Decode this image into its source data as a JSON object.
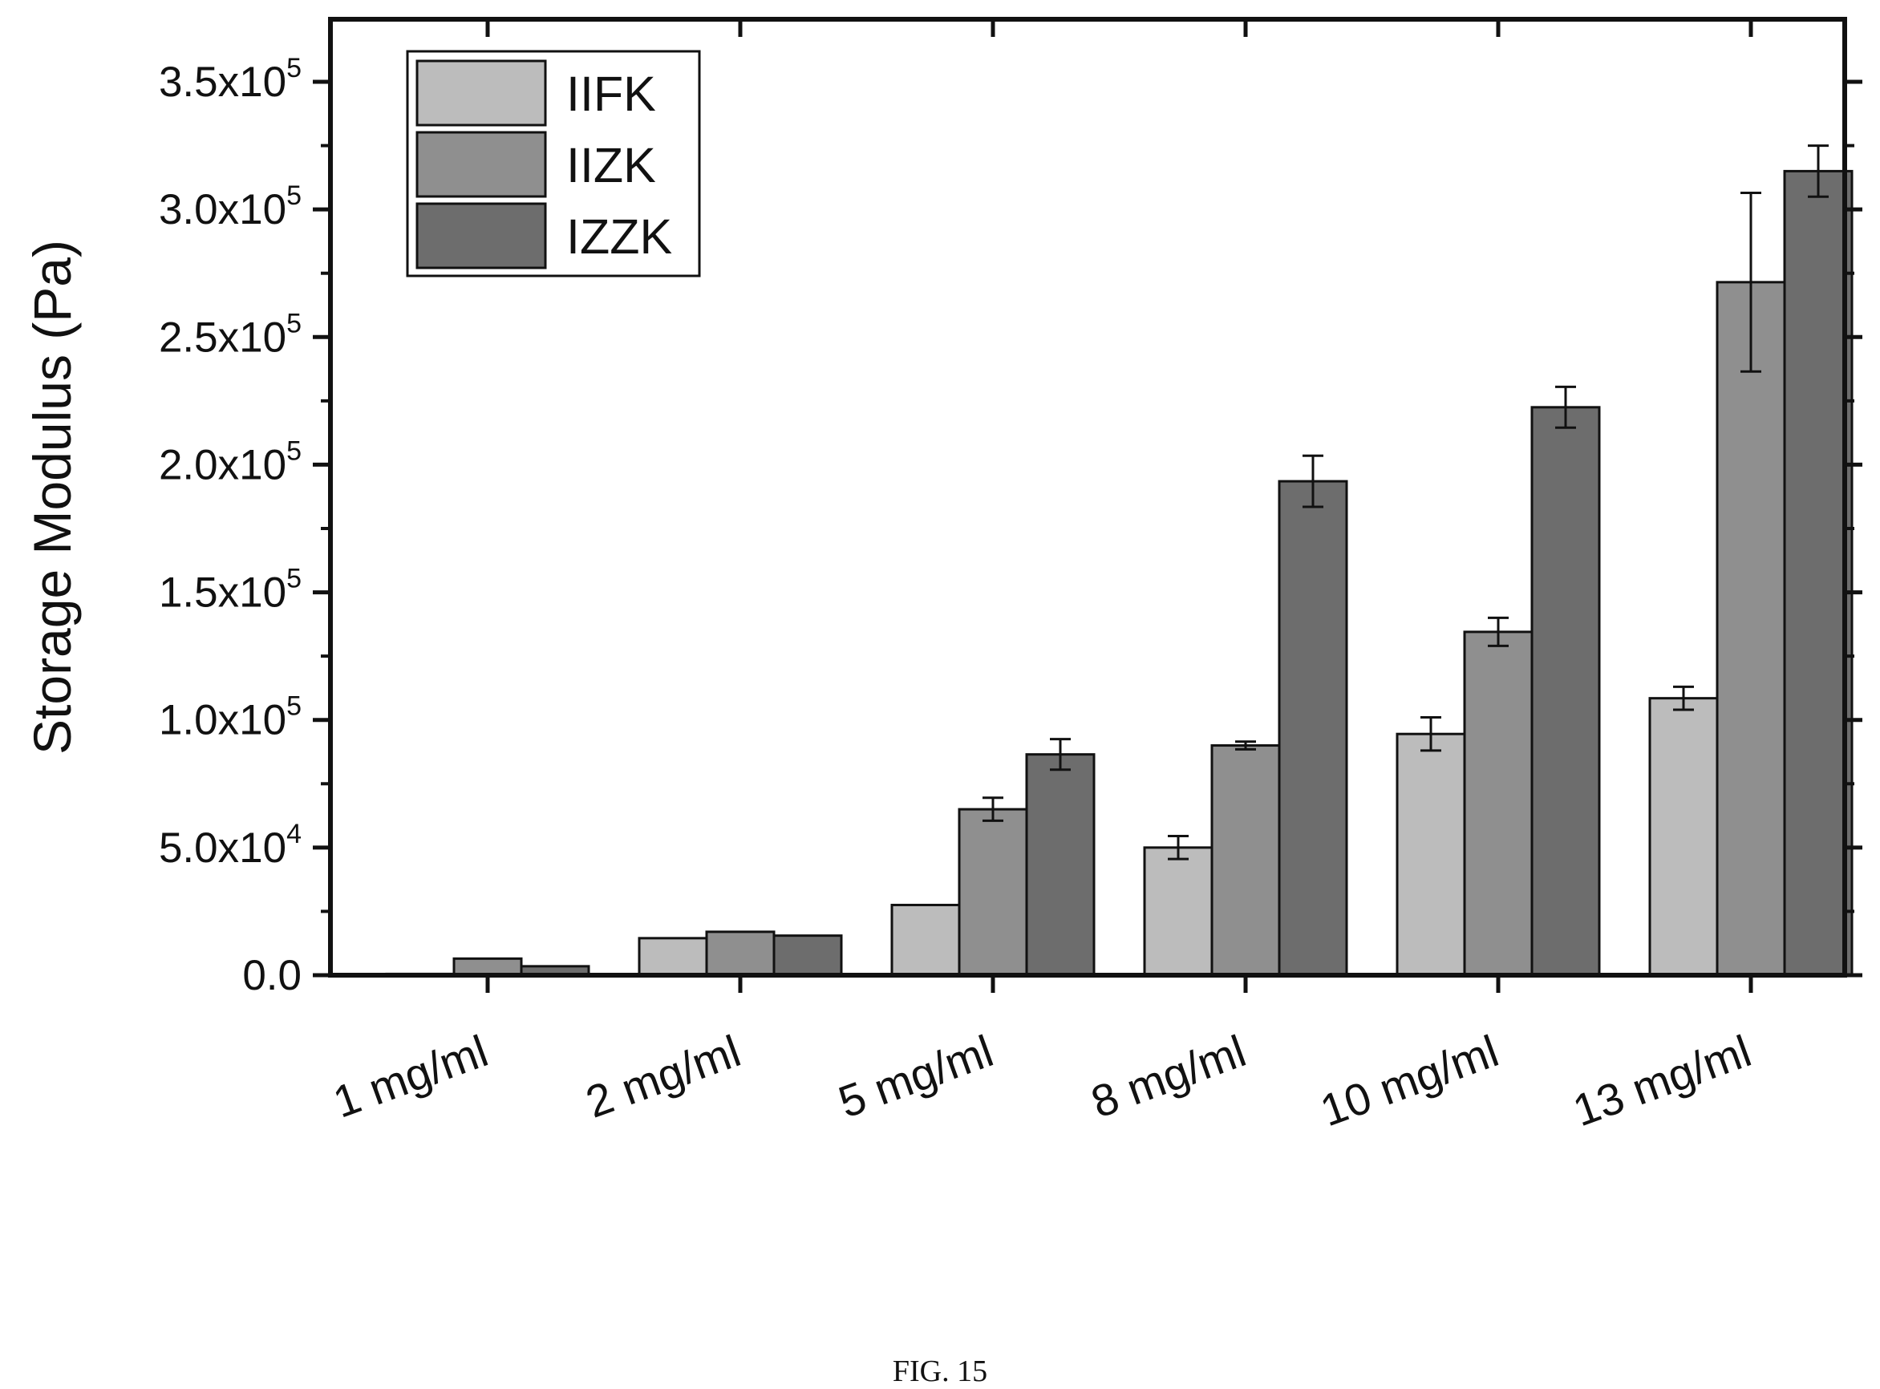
{
  "figure_caption": "FIG. 15",
  "colors": {
    "IIFK": "#bcbcbc",
    "IIZK": "#8f8f8f",
    "IZZK": "#6d6d6d",
    "axis": "#111111"
  },
  "chart_data": {
    "type": "bar",
    "title": "",
    "xlabel": "",
    "ylabel": "Storage Modulus (Pa)",
    "ylim": [
      0,
      365000
    ],
    "yticks": [
      {
        "value": 0,
        "mantissa": "0.0",
        "exp": ""
      },
      {
        "value": 50000,
        "mantissa": "5.0x10",
        "exp": "4"
      },
      {
        "value": 100000,
        "mantissa": "1.0x10",
        "exp": "5"
      },
      {
        "value": 150000,
        "mantissa": "1.5x10",
        "exp": "5"
      },
      {
        "value": 200000,
        "mantissa": "2.0x10",
        "exp": "5"
      },
      {
        "value": 250000,
        "mantissa": "2.5x10",
        "exp": "5"
      },
      {
        "value": 300000,
        "mantissa": "3.0x10",
        "exp": "5"
      },
      {
        "value": 350000,
        "mantissa": "3.5x10",
        "exp": "5"
      }
    ],
    "categories": [
      "1 mg/ml",
      "2 mg/ml",
      "5 mg/ml",
      "8 mg/ml",
      "10 mg/ml",
      "13 mg/ml"
    ],
    "series": [
      {
        "name": "IIFK",
        "values": [
          500,
          14500,
          27500,
          50000,
          94500,
          108500
        ],
        "errors": [
          200,
          1000,
          1000,
          4500,
          6500,
          4500
        ]
      },
      {
        "name": "IIZK",
        "values": [
          6500,
          17000,
          65000,
          90000,
          134500,
          271500
        ],
        "errors": [
          300,
          500,
          4500,
          1500,
          5500,
          35000
        ]
      },
      {
        "name": "IZZK",
        "values": [
          3500,
          15500,
          86500,
          193500,
          222500,
          315000
        ],
        "errors": [
          300,
          1000,
          6000,
          10000,
          8000,
          10000
        ]
      }
    ],
    "legend": {
      "position": "top-left",
      "entries": [
        "IIFK",
        "IIZK",
        "IZZK"
      ]
    },
    "grid": false,
    "error_bars": true
  }
}
